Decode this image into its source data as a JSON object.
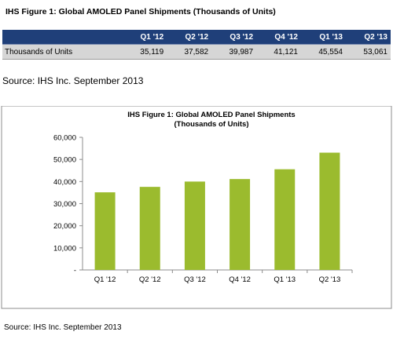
{
  "figure_title": "IHS Figure 1: Global AMOLED Panel Shipments (Thousands of Units)",
  "table": {
    "headers": [
      "Q1 '12",
      "Q2 '12",
      "Q3 '12",
      "Q4 '12",
      "Q1 '13",
      "Q2 '13"
    ],
    "row_label": "Thousands of Units",
    "values": [
      "35,119",
      "37,582",
      "39,987",
      "41,121",
      "45,554",
      "53,061"
    ]
  },
  "source_mid": "Source: IHS Inc. September 2013",
  "source_bottom": "Source: IHS Inc. September 2013",
  "chart_data": {
    "type": "bar",
    "title": [
      "IHS Figure 1: Global AMOLED Panel Shipments",
      "(Thousands of Units)"
    ],
    "categories": [
      "Q1 '12",
      "Q2 '12",
      "Q3 '12",
      "Q4 '12",
      "Q1 '13",
      "Q2 '13"
    ],
    "values": [
      35119,
      37582,
      39987,
      41121,
      45554,
      53061
    ],
    "y_ticks": [
      0,
      10000,
      20000,
      30000,
      40000,
      50000,
      60000
    ],
    "y_tick_labels": [
      "-",
      "10,000",
      "20,000",
      "30,000",
      "40,000",
      "50,000",
      "60,000"
    ],
    "ylim": [
      0,
      60000
    ],
    "grid": false,
    "colors": {
      "bar": "#9bbb2e",
      "border": "#8c8c8c"
    }
  }
}
